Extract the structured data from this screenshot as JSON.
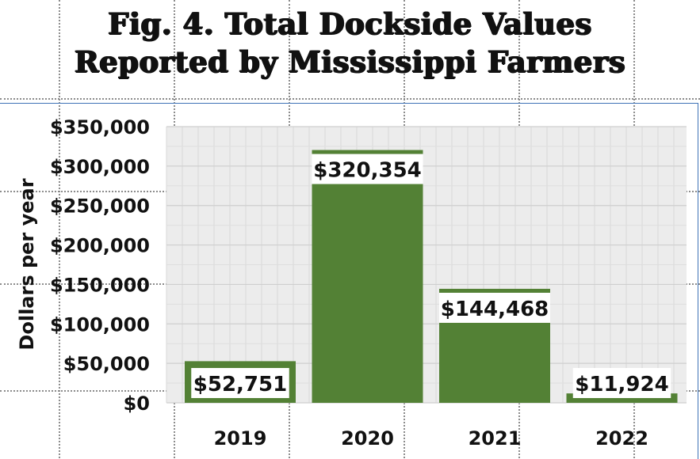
{
  "title_lines": [
    "Fig. 4. Total Dockside Values",
    "Reported by Mississippi Farmers"
  ],
  "chart_data": {
    "type": "bar",
    "categories": [
      "2019",
      "2020",
      "2021",
      "2022"
    ],
    "values": [
      52751,
      320354,
      144468,
      11924
    ],
    "data_labels": [
      "$52,751",
      "$320,354",
      "$144,468",
      "$11,924"
    ],
    "title": "Fig. 4. Total Dockside Values Reported by Mississippi Farmers",
    "xlabel": "",
    "ylabel": "Dollars per year",
    "ylim": [
      0,
      350000
    ],
    "yticks": [
      0,
      50000,
      100000,
      150000,
      200000,
      250000,
      300000,
      350000
    ],
    "ytick_labels": [
      "$0",
      "$50,000",
      "$100,000",
      "$150,000",
      "$200,000",
      "$250,000",
      "$300,000",
      "$350,000"
    ],
    "grid": true,
    "legend": "none"
  },
  "colors": {
    "bar": "#538135",
    "plot_bg": "#ececec",
    "grid": "#cfcfcf",
    "frame": "#3f73b7"
  }
}
